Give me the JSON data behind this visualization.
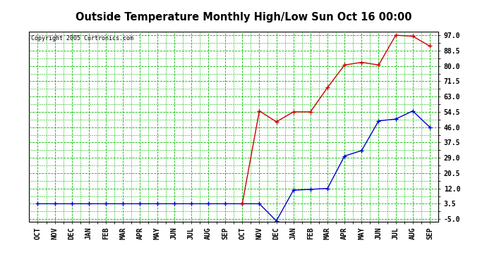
{
  "title": "Outside Temperature Monthly High/Low Sun Oct 16 00:00",
  "copyright": "Copyright 2005 Curtronics.com",
  "x_labels": [
    "OCT",
    "NOV",
    "DEC",
    "JAN",
    "FEB",
    "MAR",
    "APR",
    "MAY",
    "JUN",
    "JUL",
    "AUG",
    "SEP",
    "OCT",
    "NOV",
    "DEC",
    "JAN",
    "FEB",
    "MAR",
    "APR",
    "MAY",
    "JUN",
    "JUL",
    "AUG",
    "SEP"
  ],
  "yticks": [
    -5.0,
    3.5,
    12.0,
    20.5,
    29.0,
    37.5,
    46.0,
    54.5,
    63.0,
    71.5,
    80.0,
    88.5,
    97.0
  ],
  "ylim_min": -6.5,
  "ylim_max": 99.0,
  "red_x": [
    12,
    13,
    14,
    15,
    16,
    17,
    18,
    19,
    20,
    21,
    22,
    23
  ],
  "red_y": [
    3.5,
    55.0,
    49.0,
    54.5,
    54.5,
    68.0,
    80.5,
    82.0,
    80.5,
    97.0,
    96.5,
    91.0
  ],
  "blue_x": [
    0,
    1,
    2,
    3,
    4,
    5,
    6,
    7,
    8,
    9,
    10,
    11,
    12,
    13,
    14,
    15,
    16,
    17,
    18,
    19,
    20,
    21,
    22,
    23
  ],
  "blue_y": [
    3.5,
    3.5,
    3.5,
    3.5,
    3.5,
    3.5,
    3.5,
    3.5,
    3.5,
    3.5,
    3.5,
    3.5,
    3.5,
    3.5,
    -6.0,
    11.0,
    11.5,
    12.0,
    30.0,
    33.0,
    49.5,
    50.5,
    55.0,
    46.0
  ],
  "bg_color": "#ffffff",
  "plot_bg_color": "#ffffff",
  "grid_color": "#00bb00",
  "title_color": "#000000",
  "red_color": "#cc0000",
  "blue_color": "#0000cc",
  "marker_color": "#000000"
}
